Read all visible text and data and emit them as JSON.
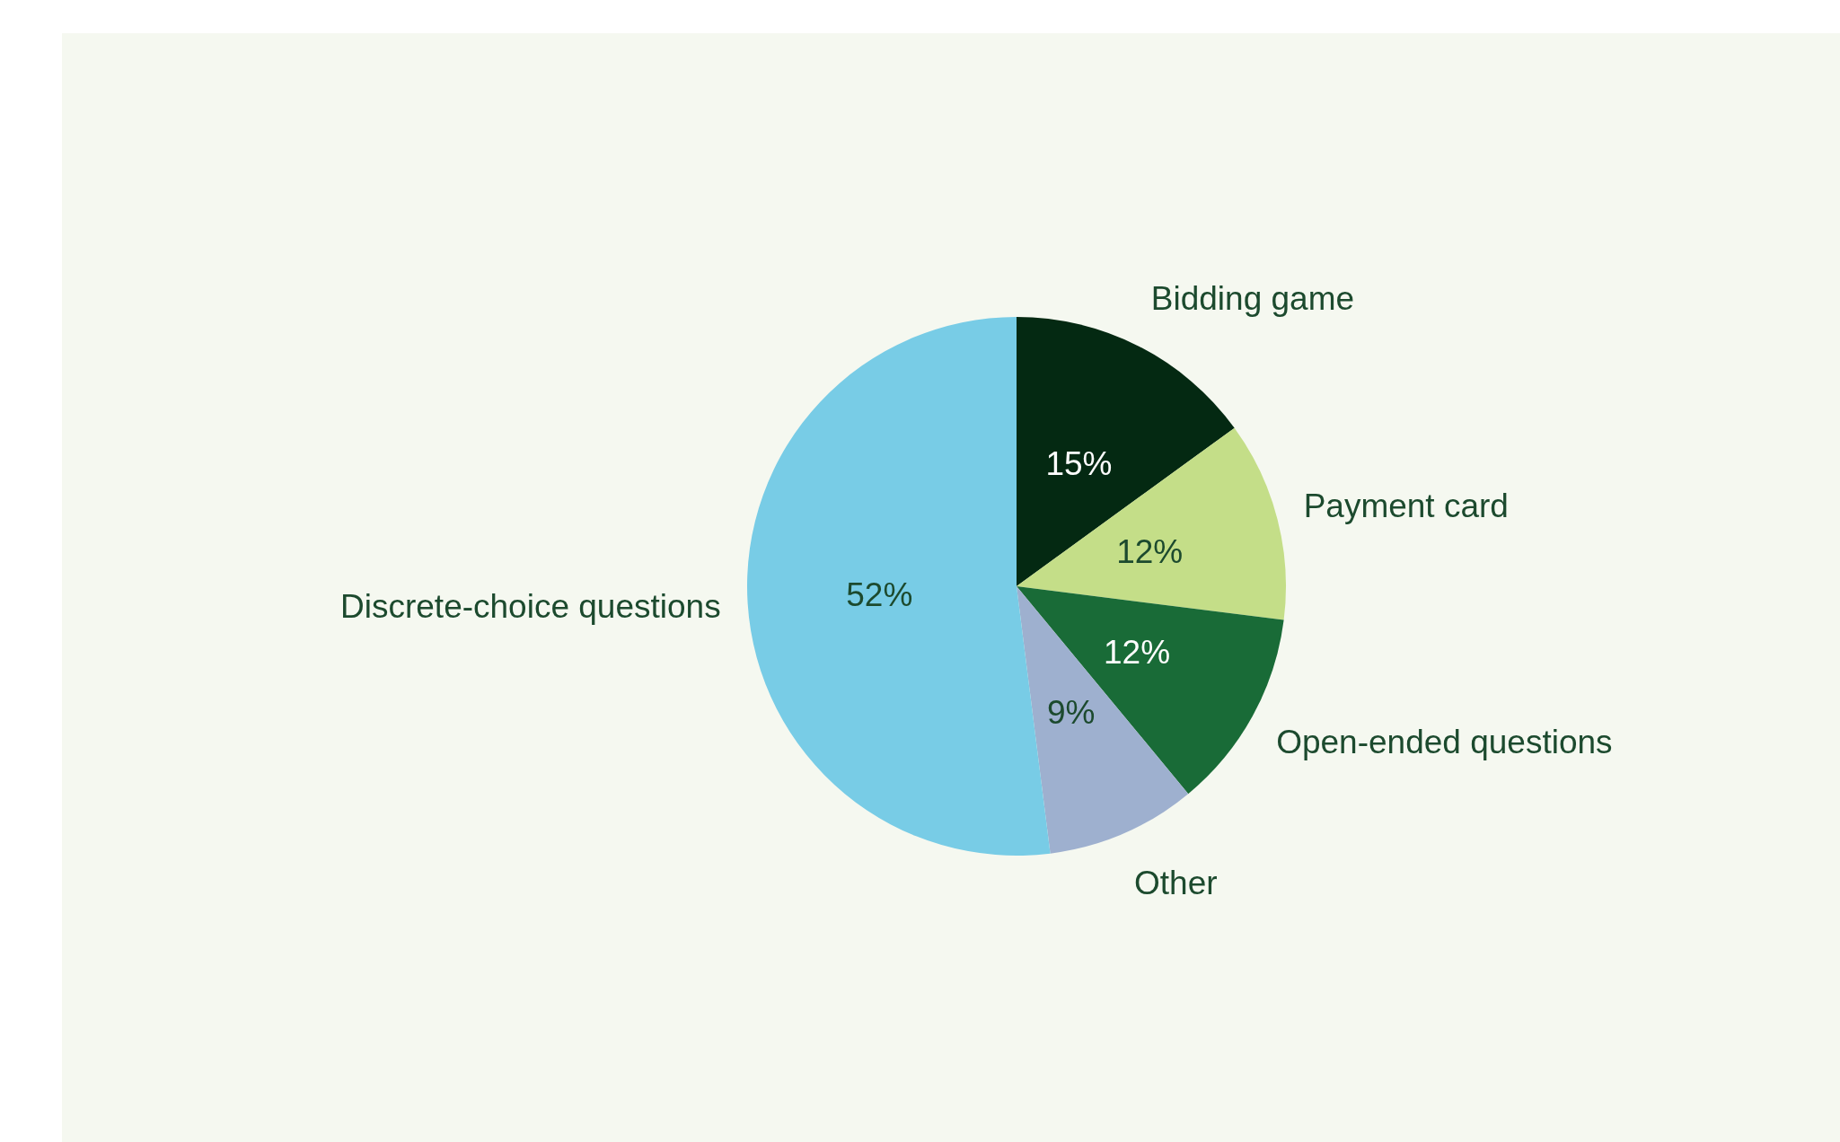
{
  "chart_data": {
    "type": "pie",
    "categories": [
      "Bidding game",
      "Payment card",
      "Open-ended questions",
      "Other",
      "Discrete-choice questions"
    ],
    "values": [
      15,
      12,
      12,
      9,
      52
    ],
    "value_labels": [
      "15%",
      "12%",
      "12%",
      "9%",
      "52%"
    ],
    "colors": [
      "#042912",
      "#c4de88",
      "#196b37",
      "#9eb0cf",
      "#78cce6"
    ],
    "legend": false
  }
}
